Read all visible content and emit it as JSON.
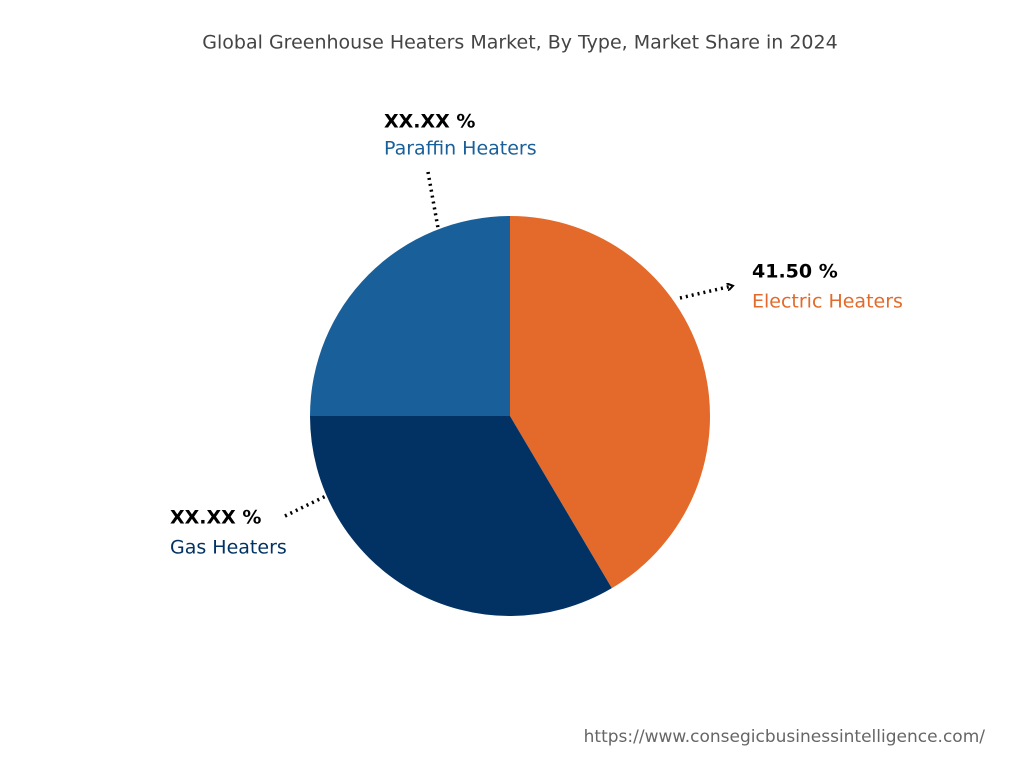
{
  "chart_data": {
    "type": "pie",
    "title": "Global Greenhouse Heaters Market, By Type, Market Share in 2024",
    "categories": [
      "Electric Heaters",
      "Gas Heaters",
      "Paraffin Heaters"
    ],
    "values": [
      41.5,
      33.5,
      25
    ],
    "value_labels": [
      "41.50 %",
      "XX.XX %",
      "XX.XX %"
    ],
    "colors": [
      "#e36a2a",
      "#023264",
      "#19609a"
    ]
  },
  "source": "https://www.consegicbusinessintelligence.com/"
}
